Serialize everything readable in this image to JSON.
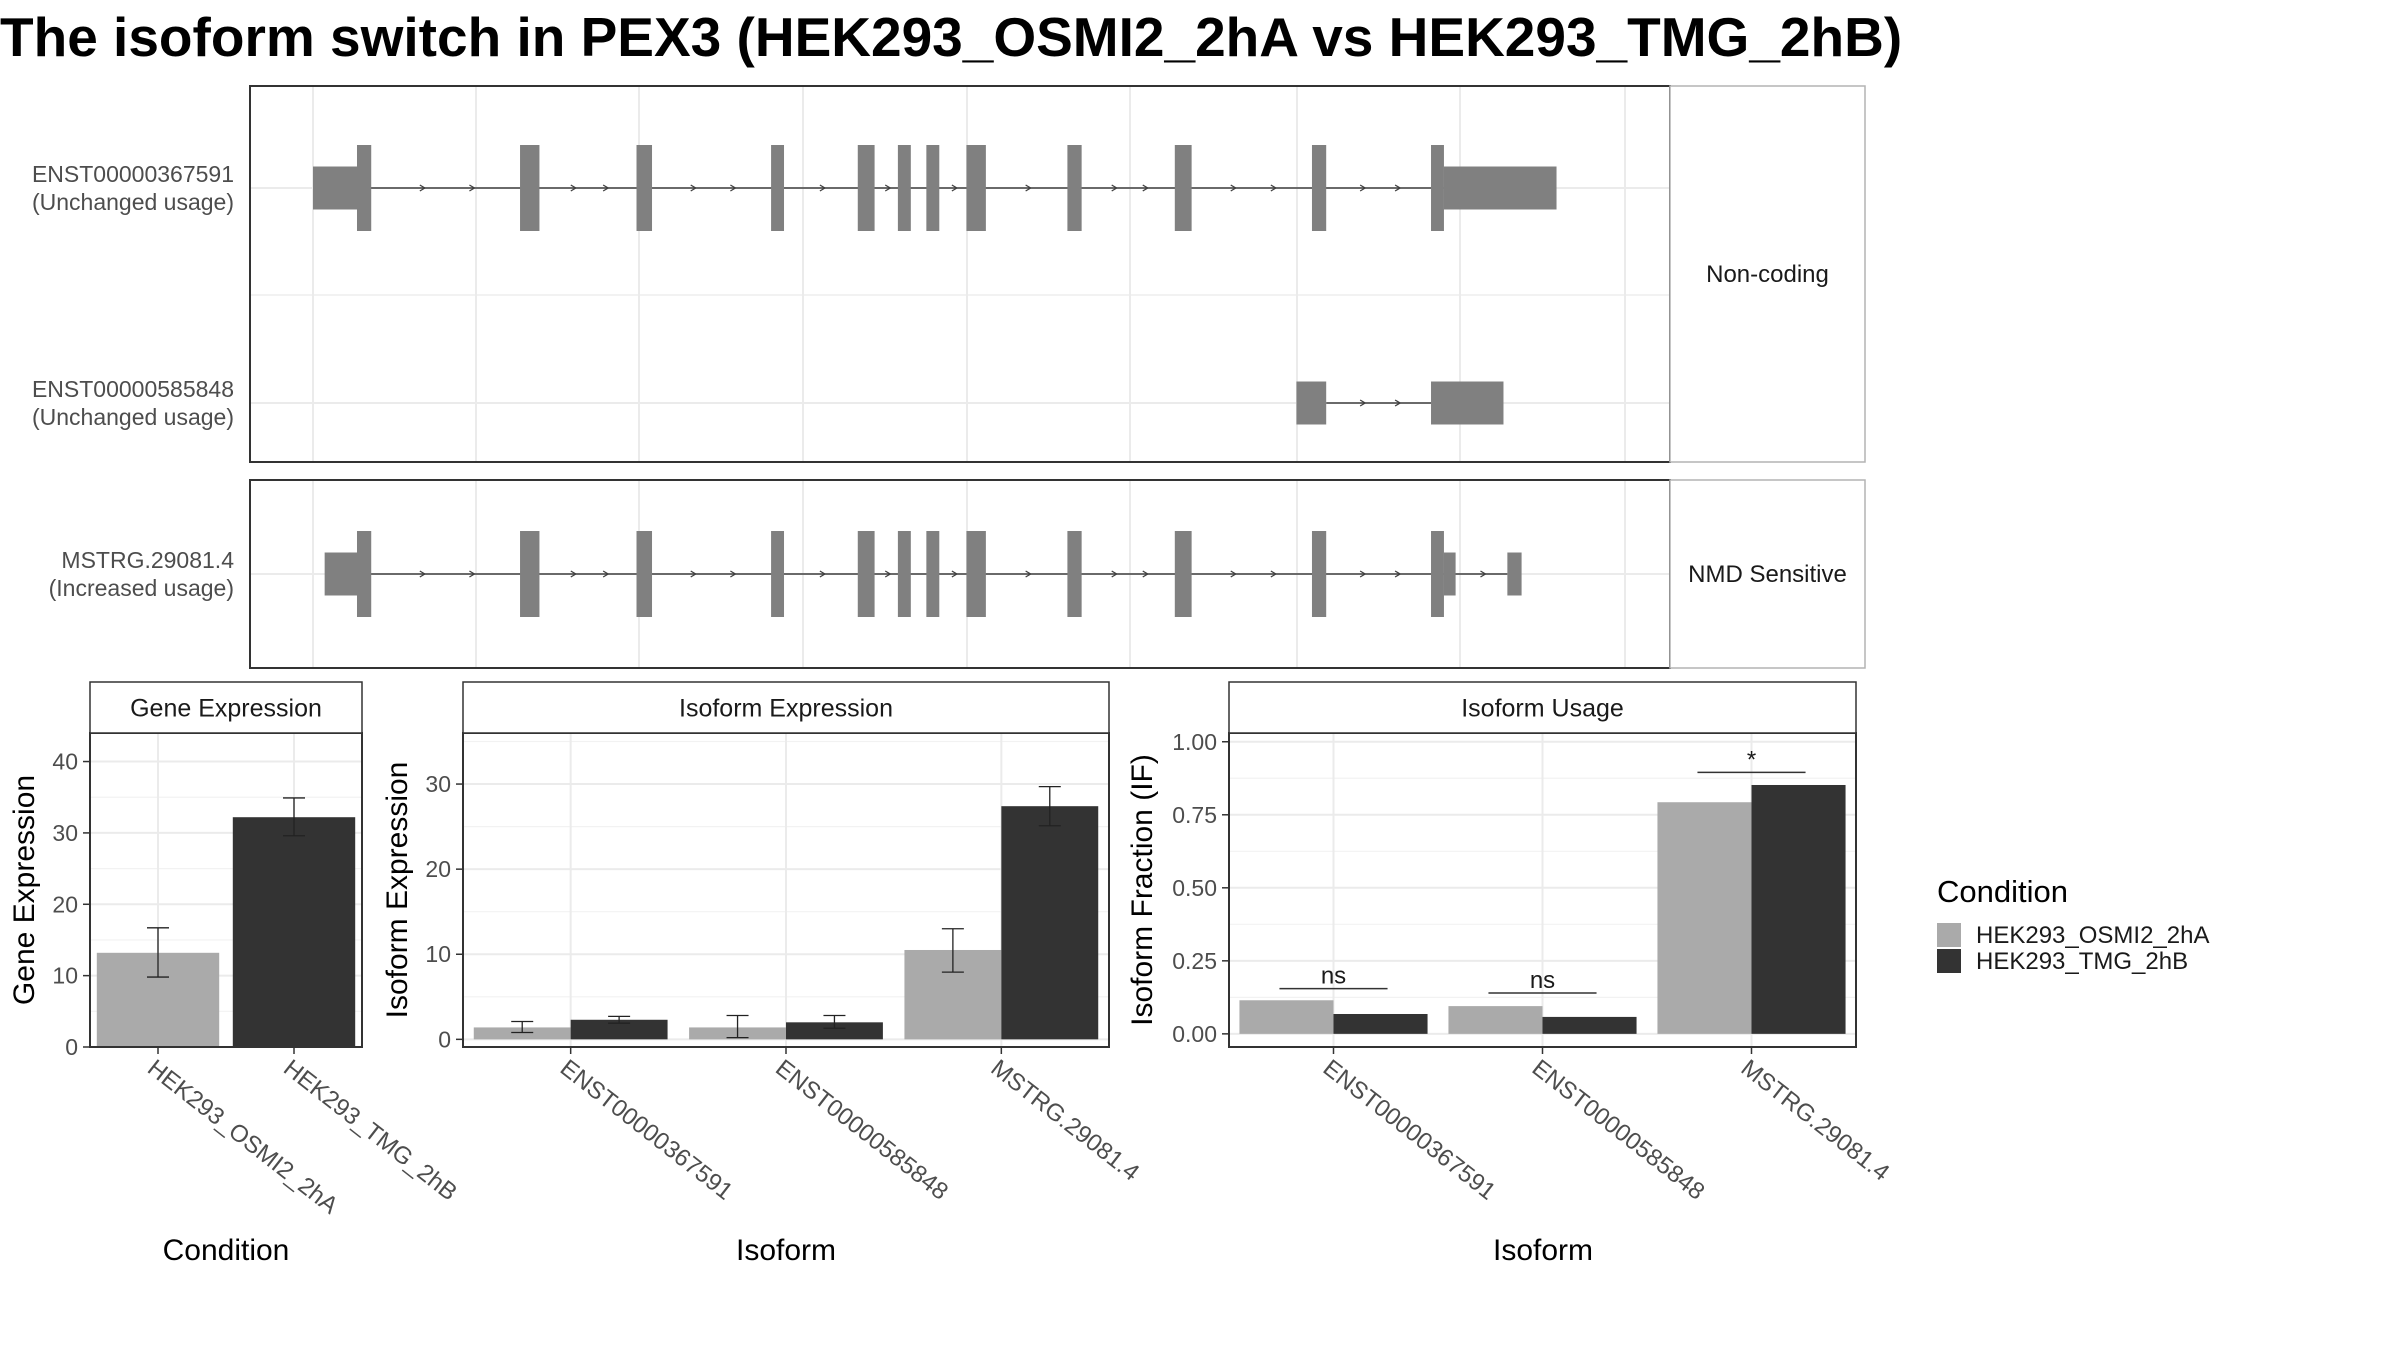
{
  "title": "The isoform switch in PEX3 (HEK293_OSMI2_2hA vs HEK293_TMG_2hB)",
  "colors": {
    "exon": "#808080",
    "intron": "#404040",
    "grid": "#ebebeb",
    "panel_border": "#333333",
    "strip_fill": "#ffffff",
    "strip_border": "#b3b3b3",
    "text": "#4d4d4d",
    "title": "#000000"
  },
  "transcript_panels": [
    {
      "strip_label": "Non-coding",
      "transcripts": [
        {
          "id": "ENST00000367591",
          "usage": "(Unchanged usage)",
          "exons": [
            {
              "start": 0.0,
              "end": 0.034,
              "type": "utr"
            },
            {
              "start": 0.034,
              "end": 0.045,
              "type": "cds"
            },
            {
              "start": 0.16,
              "end": 0.175,
              "type": "cds"
            },
            {
              "start": 0.25,
              "end": 0.262,
              "type": "cds"
            },
            {
              "start": 0.354,
              "end": 0.364,
              "type": "cds"
            },
            {
              "start": 0.421,
              "end": 0.434,
              "type": "cds"
            },
            {
              "start": 0.452,
              "end": 0.462,
              "type": "cds"
            },
            {
              "start": 0.474,
              "end": 0.484,
              "type": "cds"
            },
            {
              "start": 0.505,
              "end": 0.52,
              "type": "cds"
            },
            {
              "start": 0.583,
              "end": 0.594,
              "type": "cds"
            },
            {
              "start": 0.666,
              "end": 0.679,
              "type": "cds"
            },
            {
              "start": 0.772,
              "end": 0.783,
              "type": "cds"
            },
            {
              "start": 0.864,
              "end": 0.874,
              "type": "cds"
            },
            {
              "start": 0.874,
              "end": 0.961,
              "type": "utr"
            }
          ]
        },
        {
          "id": "ENST00000585848",
          "usage": "(Unchanged usage)",
          "exons": [
            {
              "start": 0.76,
              "end": 0.783,
              "type": "utr"
            },
            {
              "start": 0.864,
              "end": 0.92,
              "type": "utr"
            }
          ]
        }
      ]
    },
    {
      "strip_label": "NMD Sensitive",
      "transcripts": [
        {
          "id": "MSTRG.29081.4",
          "usage": "(Increased usage)",
          "exons": [
            {
              "start": 0.009,
              "end": 0.034,
              "type": "utr"
            },
            {
              "start": 0.034,
              "end": 0.045,
              "type": "cds"
            },
            {
              "start": 0.16,
              "end": 0.175,
              "type": "cds"
            },
            {
              "start": 0.25,
              "end": 0.262,
              "type": "cds"
            },
            {
              "start": 0.354,
              "end": 0.364,
              "type": "cds"
            },
            {
              "start": 0.421,
              "end": 0.434,
              "type": "cds"
            },
            {
              "start": 0.452,
              "end": 0.462,
              "type": "cds"
            },
            {
              "start": 0.474,
              "end": 0.484,
              "type": "cds"
            },
            {
              "start": 0.505,
              "end": 0.52,
              "type": "cds"
            },
            {
              "start": 0.583,
              "end": 0.594,
              "type": "cds"
            },
            {
              "start": 0.666,
              "end": 0.679,
              "type": "cds"
            },
            {
              "start": 0.772,
              "end": 0.783,
              "type": "cds"
            },
            {
              "start": 0.864,
              "end": 0.874,
              "type": "cds"
            },
            {
              "start": 0.874,
              "end": 0.883,
              "type": "utr"
            },
            {
              "start": 0.923,
              "end": 0.934,
              "type": "utr"
            }
          ]
        }
      ]
    }
  ],
  "chart_data": [
    {
      "type": "bar",
      "strip_label": "Gene Expression",
      "xlabel": "Condition",
      "ylabel": "Gene Expression",
      "ylim": [
        0,
        44
      ],
      "yticks": [
        0,
        10,
        20,
        30,
        40
      ],
      "ytick_labels": [
        "0",
        "10",
        "20",
        "30",
        "40"
      ],
      "categories": [
        "HEK293_OSMI2_2hA",
        "HEK293_TMG_2hB"
      ],
      "series": [
        {
          "values": [
            13.2,
            32.2
          ],
          "err_low": [
            9.8,
            29.6
          ],
          "err_high": [
            16.7,
            34.9
          ]
        }
      ],
      "bar_colors": [
        "#aaaaaa",
        "#333333"
      ],
      "grid": true
    },
    {
      "type": "bar",
      "strip_label": "Isoform Expression",
      "xlabel": "Isoform",
      "ylabel": "Isoform Expression",
      "ylim": [
        -0.9,
        36
      ],
      "yticks": [
        0,
        10,
        20,
        30
      ],
      "ytick_labels": [
        "0",
        "10",
        "20",
        "30"
      ],
      "categories": [
        "ENST00000367591",
        "ENST00000585848",
        "MSTRG.29081.4"
      ],
      "series": [
        {
          "name": "HEK293_OSMI2_2hA",
          "values": [
            1.4,
            1.4,
            10.5
          ],
          "err_low": [
            0.8,
            0.2,
            7.9
          ],
          "err_high": [
            2.1,
            2.8,
            13.0
          ]
        },
        {
          "name": "HEK293_TMG_2hB",
          "values": [
            2.3,
            2.0,
            27.4
          ],
          "err_low": [
            1.9,
            1.3,
            25.1
          ],
          "err_high": [
            2.7,
            2.8,
            29.7
          ]
        }
      ],
      "grid": true
    },
    {
      "type": "bar",
      "strip_label": "Isoform Usage",
      "xlabel": "Isoform",
      "ylabel": "Isoform Fraction (IF)",
      "ylim": [
        -0.045,
        1.03
      ],
      "yticks": [
        0,
        0.25,
        0.5,
        0.75,
        1.0
      ],
      "ytick_labels": [
        "0.00",
        "0.25",
        "0.50",
        "0.75",
        "1.00"
      ],
      "categories": [
        "ENST00000367591",
        "ENST00000585848",
        "MSTRG.29081.4"
      ],
      "series": [
        {
          "name": "HEK293_OSMI2_2hA",
          "values": [
            0.115,
            0.095,
            0.793
          ]
        },
        {
          "name": "HEK293_TMG_2hB",
          "values": [
            0.068,
            0.058,
            0.852
          ]
        }
      ],
      "significance": [
        {
          "label": "ns",
          "level": 0.155
        },
        {
          "label": "ns",
          "level": 0.14
        },
        {
          "label": "*",
          "level": 0.895
        }
      ],
      "grid": true
    }
  ],
  "legend": {
    "title": "Condition",
    "position": "right",
    "items": [
      {
        "label": "HEK293_OSMI2_2hA",
        "color": "#aaaaaa"
      },
      {
        "label": "HEK293_TMG_2hB",
        "color": "#333333"
      }
    ]
  }
}
